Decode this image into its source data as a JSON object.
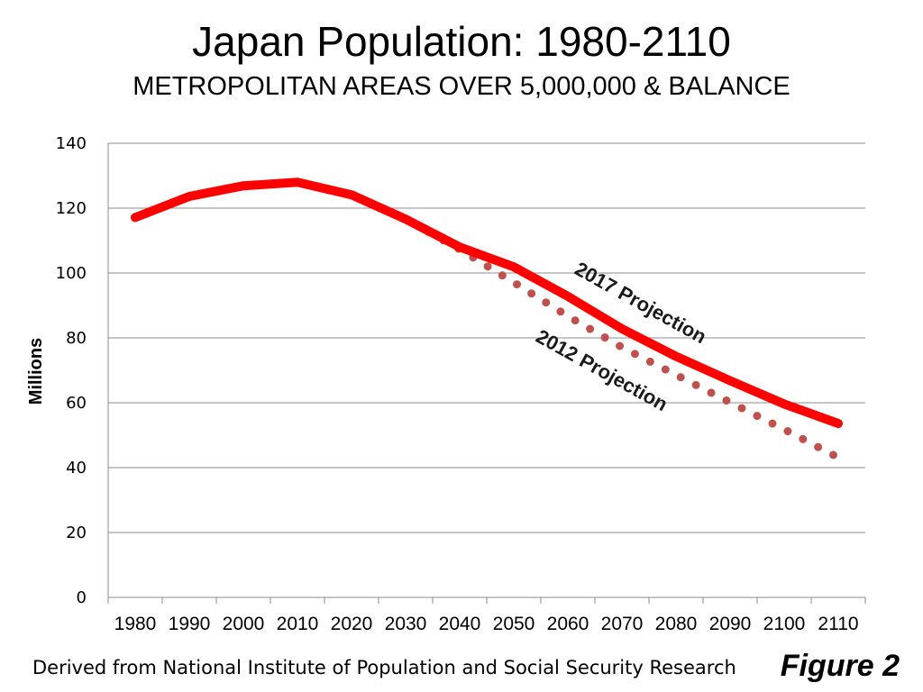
{
  "chart_data": {
    "type": "line",
    "title": "Japan Population: 1980-2110",
    "subtitle": "METROPOLITAN AREAS OVER 5,000,000 & BALANCE",
    "ylabel": "Millions",
    "xlabel": "",
    "ylim": [
      0,
      140
    ],
    "yticks": [
      "0",
      "20",
      "40",
      "60",
      "80",
      "100",
      "120",
      "140"
    ],
    "categories": [
      "1980",
      "1990",
      "2000",
      "2010",
      "2020",
      "2030",
      "2040",
      "2050",
      "2060",
      "2070",
      "2080",
      "2090",
      "2100",
      "2110"
    ],
    "grid": true,
    "series": [
      {
        "name": "2017 Projection",
        "style": "solid",
        "color": "#ff0000",
        "values": [
          117.1,
          123.6,
          126.9,
          128.0,
          124.1,
          116.6,
          108.0,
          101.9,
          92.8,
          82.8,
          74.3,
          66.8,
          59.6,
          53.6
        ]
      },
      {
        "name": "2012 Projection",
        "style": "dotted",
        "color": "#c0504d",
        "values": [
          null,
          null,
          null,
          null,
          124.1,
          116.6,
          107.3,
          97.1,
          86.7,
          77.1,
          68.6,
          60.1,
          51.8,
          43.1
        ]
      }
    ],
    "annotations": [
      "2017 Projection",
      "2012 Projection"
    ]
  },
  "footer": {
    "source": "Derived from National Institute of Population and Social Security Research",
    "figure_label": "Figure 2"
  }
}
